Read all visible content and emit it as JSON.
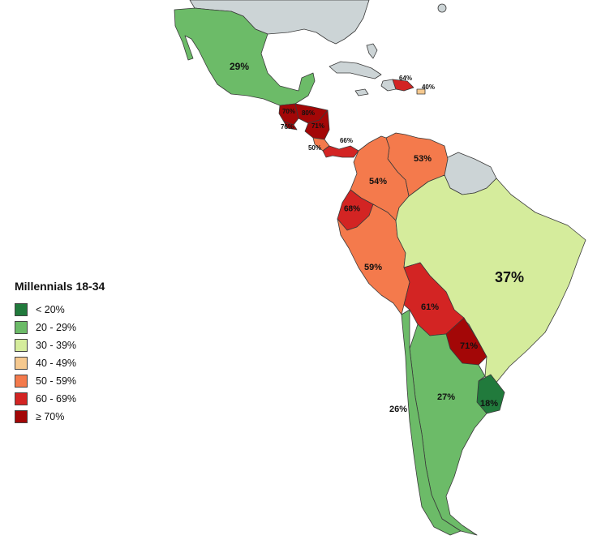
{
  "legend": {
    "title": "Millennials 18-34",
    "classes": [
      {
        "label": "< 20%",
        "color": "#217a3c"
      },
      {
        "label": "20 - 29%",
        "color": "#6cbb68"
      },
      {
        "label": "30 - 39%",
        "color": "#d5ec9c"
      },
      {
        "label": "40 - 49%",
        "color": "#f6c98f"
      },
      {
        "label": "50 - 59%",
        "color": "#f47a4c"
      },
      {
        "label": "60 - 69%",
        "color": "#d32423"
      },
      {
        "label": "≥ 70%",
        "color": "#a30707"
      }
    ]
  },
  "colors": {
    "non_data_land": "#ccd4d6",
    "border": "#3a3a3a",
    "background": "#ffffff"
  },
  "countries": [
    {
      "id": "mexico",
      "value_label": "29%",
      "class": "20 - 29%"
    },
    {
      "id": "guatemala",
      "value_label": "76%",
      "class": "≥ 70%"
    },
    {
      "id": "el-salvador",
      "value_label": "70%",
      "class": "≥ 70%"
    },
    {
      "id": "honduras",
      "value_label": "80%",
      "class": "≥ 70%"
    },
    {
      "id": "nicaragua",
      "value_label": "71%",
      "class": "≥ 70%"
    },
    {
      "id": "costa-rica",
      "value_label": "50%",
      "class": "50 - 59%"
    },
    {
      "id": "panama",
      "value_label": "66%",
      "class": "60 - 69%"
    },
    {
      "id": "dominican-republic",
      "value_label": "64%",
      "class": "60 - 69%"
    },
    {
      "id": "puerto-rico",
      "value_label": "40%",
      "class": "40 - 49%"
    },
    {
      "id": "venezuela",
      "value_label": "53%",
      "class": "50 - 59%"
    },
    {
      "id": "colombia",
      "value_label": "54%",
      "class": "50 - 59%"
    },
    {
      "id": "ecuador",
      "value_label": "68%",
      "class": "60 - 69%"
    },
    {
      "id": "peru",
      "value_label": "59%",
      "class": "50 - 59%"
    },
    {
      "id": "brazil",
      "value_label": "37%",
      "class": "30 - 39%"
    },
    {
      "id": "bolivia",
      "value_label": "61%",
      "class": "60 - 69%"
    },
    {
      "id": "paraguay",
      "value_label": "71%",
      "class": "≥ 70%"
    },
    {
      "id": "uruguay",
      "value_label": "18%",
      "class": "< 20%"
    },
    {
      "id": "argentina",
      "value_label": "27%",
      "class": "20 - 29%"
    },
    {
      "id": "chile",
      "value_label": "26%",
      "class": "20 - 29%"
    }
  ]
}
